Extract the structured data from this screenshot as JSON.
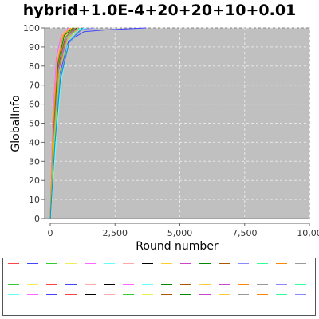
{
  "chart_data": {
    "type": "line",
    "title": "hybrid+1.0E-4+20+20+10+0.01",
    "xlabel": "Round number",
    "ylabel": "GlobalInfo",
    "xlim": [
      0,
      10000
    ],
    "ylim": [
      0,
      100
    ],
    "x_ticks": [
      "0",
      "2,500",
      "5,000",
      "7,500",
      "10,00"
    ],
    "x_tick_values": [
      0,
      2500,
      5000,
      7500,
      10000
    ],
    "y_ticks": [
      "0",
      "10",
      "20",
      "30",
      "40",
      "50",
      "60",
      "70",
      "80",
      "90",
      "100"
    ],
    "y_tick_values": [
      0,
      10,
      20,
      30,
      40,
      50,
      60,
      70,
      80,
      90,
      100
    ],
    "grid": true,
    "plot_background": "#c0c0c0",
    "legend_position": "bottom",
    "legend_names_printed": false,
    "series": [
      {
        "color": "#ff4444",
        "points": [
          [
            0,
            0
          ],
          [
            100,
            45
          ],
          [
            250,
            80
          ],
          [
            450,
            95
          ],
          [
            700,
            99
          ],
          [
            1100,
            100
          ]
        ]
      },
      {
        "color": "#4444ff",
        "points": [
          [
            0,
            0
          ],
          [
            150,
            40
          ],
          [
            350,
            75
          ],
          [
            700,
            93
          ],
          [
            1300,
            98
          ],
          [
            2200,
            99
          ],
          [
            3700,
            100
          ]
        ]
      },
      {
        "color": "#33cc33",
        "points": [
          [
            0,
            0
          ],
          [
            120,
            48
          ],
          [
            300,
            82
          ],
          [
            550,
            96
          ],
          [
            900,
            100
          ]
        ]
      },
      {
        "color": "#eeee55",
        "points": [
          [
            0,
            0
          ],
          [
            110,
            44
          ],
          [
            280,
            80
          ],
          [
            500,
            94
          ],
          [
            800,
            100
          ]
        ]
      },
      {
        "color": "#ff66ff",
        "points": [
          [
            0,
            0
          ],
          [
            90,
            50
          ],
          [
            230,
            84
          ],
          [
            420,
            96
          ],
          [
            700,
            100
          ]
        ]
      },
      {
        "color": "#66ffff",
        "points": [
          [
            0,
            0
          ],
          [
            200,
            35
          ],
          [
            400,
            70
          ],
          [
            650,
            90
          ],
          [
            1000,
            99
          ],
          [
            1400,
            100
          ]
        ]
      },
      {
        "color": "#ffaaaa",
        "points": [
          [
            0,
            0
          ],
          [
            100,
            46
          ],
          [
            260,
            83
          ],
          [
            480,
            97
          ],
          [
            760,
            100
          ]
        ]
      },
      {
        "color": "#000000",
        "points": [
          [
            0,
            0
          ],
          [
            130,
            42
          ],
          [
            320,
            79
          ],
          [
            600,
            95
          ],
          [
            1000,
            100
          ]
        ]
      },
      {
        "color": "#ffcc33",
        "points": [
          [
            0,
            0
          ],
          [
            100,
            47
          ],
          [
            270,
            82
          ],
          [
            520,
            97
          ],
          [
            850,
            100
          ]
        ]
      },
      {
        "color": "#cc44cc",
        "points": [
          [
            0,
            0
          ],
          [
            140,
            43
          ],
          [
            330,
            78
          ],
          [
            620,
            94
          ],
          [
            1050,
            100
          ]
        ]
      },
      {
        "color": "#008800",
        "points": [
          [
            0,
            0
          ],
          [
            115,
            45
          ],
          [
            290,
            81
          ],
          [
            540,
            96
          ],
          [
            880,
            100
          ]
        ]
      },
      {
        "color": "#aa5500",
        "points": [
          [
            0,
            0
          ],
          [
            125,
            44
          ],
          [
            310,
            80
          ],
          [
            580,
            95
          ],
          [
            940,
            100
          ]
        ]
      },
      {
        "color": "#8888ff",
        "points": [
          [
            0,
            0
          ],
          [
            170,
            38
          ],
          [
            380,
            74
          ],
          [
            720,
            92
          ],
          [
            1200,
            99
          ],
          [
            1700,
            100
          ]
        ]
      },
      {
        "color": "#33ff99",
        "points": [
          [
            0,
            0
          ],
          [
            160,
            41
          ],
          [
            360,
            77
          ],
          [
            680,
            95
          ],
          [
            1150,
            100
          ]
        ]
      },
      {
        "color": "#ff8800",
        "points": [
          [
            0,
            0
          ],
          [
            105,
            46
          ],
          [
            265,
            81
          ],
          [
            490,
            96
          ],
          [
            790,
            100
          ]
        ]
      },
      {
        "color": "#999999",
        "points": [
          [
            0,
            0
          ],
          [
            135,
            43
          ],
          [
            325,
            79
          ],
          [
            610,
            95
          ],
          [
            980,
            100
          ]
        ]
      },
      {
        "color": "#cccc00",
        "points": [
          [
            0,
            0
          ],
          [
            145,
            40
          ],
          [
            345,
            76
          ],
          [
            660,
            94
          ],
          [
            1080,
            100
          ]
        ]
      },
      {
        "color": "#0099cc",
        "points": [
          [
            0,
            0
          ],
          [
            180,
            39
          ],
          [
            390,
            73
          ],
          [
            740,
            93
          ],
          [
            1250,
            100
          ]
        ]
      }
    ]
  },
  "legend": {
    "swatches": [
      "#ff4444",
      "#4444ff",
      "#33cc33",
      "#eeee55",
      "#ff66ff",
      "#66ffff",
      "#ffaaaa",
      "#000000",
      "#ffcc33",
      "#cc44cc",
      "#008800",
      "#aa5500",
      "#8888ff",
      "#33ff99",
      "#ff8800",
      "#999999",
      "#4444ff",
      "#ff4444",
      "#eeee55",
      "#33cc33",
      "#66ffff",
      "#ff66ff",
      "#000000",
      "#ffaaaa",
      "#cc44cc",
      "#ffcc33",
      "#aa5500",
      "#008800",
      "#33ff99",
      "#8888ff",
      "#999999",
      "#ff8800",
      "#33cc33",
      "#eeee55",
      "#ff4444",
      "#4444ff",
      "#ffaaaa",
      "#000000",
      "#ff66ff",
      "#66ffff",
      "#008800",
      "#aa5500",
      "#ffcc33",
      "#cc44cc",
      "#ff8800",
      "#999999",
      "#8888ff",
      "#33ff99",
      "#66ffff",
      "#ff66ff",
      "#4444ff",
      "#ff4444",
      "#000000",
      "#ffaaaa",
      "#33cc33",
      "#eeee55",
      "#aa5500",
      "#008800",
      "#cc44cc",
      "#ffcc33",
      "#999999",
      "#ff8800",
      "#33ff99",
      "#8888ff",
      "#ffaaaa",
      "#000000",
      "#66ffff",
      "#ff66ff",
      "#ff4444",
      "#4444ff",
      "#eeee55",
      "#33cc33",
      "#ffcc33",
      "#cc44cc",
      "#008800",
      "#aa5500",
      "#8888ff",
      "#33ff99",
      "#ff8800",
      "#999999"
    ]
  }
}
